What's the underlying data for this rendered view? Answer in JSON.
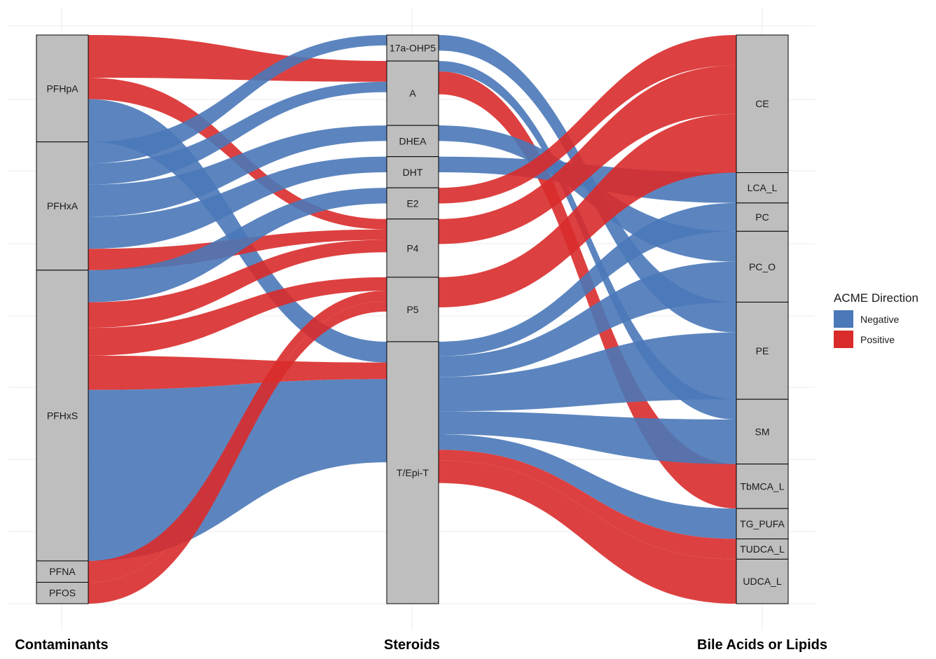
{
  "chart_data": {
    "type": "alluvial",
    "axes": [
      "Contaminants",
      "Steroids",
      "Bile Acids or Lipids"
    ],
    "strata": {
      "Contaminants": [
        "PFHpA",
        "PFHxA",
        "PFHxS",
        "PFNA",
        "PFOS"
      ],
      "Steroids": [
        "17a-OHP5",
        "A",
        "DHEA",
        "DHT",
        "E2",
        "P4",
        "P5",
        "T/Epi-T"
      ],
      "Bile Acids or Lipids": [
        "CE",
        "LCA_L",
        "PC",
        "PC_O",
        "PE",
        "SM",
        "TbMCA_L",
        "TG_PUFA",
        "TUDCA_L",
        "UDCA_L"
      ]
    },
    "flows_stage1": [
      {
        "from": "PFHpA",
        "to": "A",
        "direction": "Positive",
        "value": 2.0
      },
      {
        "from": "PFHpA",
        "to": "P4",
        "direction": "Positive",
        "value": 1.0
      },
      {
        "from": "PFHpA",
        "to": "T/Epi-T",
        "direction": "Negative",
        "value": 2.0
      },
      {
        "from": "PFHxA",
        "to": "17a-OHP5",
        "direction": "Negative",
        "value": 1.0
      },
      {
        "from": "PFHxA",
        "to": "DHEA",
        "direction": "Negative",
        "value": 1.5
      },
      {
        "from": "PFHxA",
        "to": "P4",
        "direction": "Positive",
        "value": 1.0
      },
      {
        "from": "PFHxA",
        "to": "A",
        "direction": "Negative",
        "value": 1.0
      },
      {
        "from": "PFHxA",
        "to": "DHT",
        "direction": "Negative",
        "value": 1.5
      },
      {
        "from": "PFHxS",
        "to": "P4",
        "direction": "Positive",
        "value": 1.2
      },
      {
        "from": "PFHxS",
        "to": "T/Epi-T",
        "direction": "Positive",
        "value": 1.6
      },
      {
        "from": "PFHxS",
        "to": "E2",
        "direction": "Negative",
        "value": 1.5
      },
      {
        "from": "PFHxS",
        "to": "P5",
        "direction": "Positive",
        "value": 1.3
      },
      {
        "from": "PFHxS",
        "to": "T/Epi-T",
        "direction": "Negative",
        "value": 8.0
      },
      {
        "from": "PFNA",
        "to": "P5",
        "direction": "Positive",
        "value": 1.0
      },
      {
        "from": "PFOS",
        "to": "P5",
        "direction": "Positive",
        "value": 1.0
      }
    ],
    "flows_stage2": [
      {
        "from": "17a-OHP5",
        "to": "PE",
        "direction": "Negative",
        "value": 1.5
      },
      {
        "from": "A",
        "to": "TbMCA_L",
        "direction": "Positive",
        "value": 2.2
      },
      {
        "from": "A",
        "to": "SM",
        "direction": "Negative",
        "value": 1.0
      },
      {
        "from": "DHEA",
        "to": "PC_O",
        "direction": "Negative",
        "value": 1.5
      },
      {
        "from": "DHT",
        "to": "LCA_L",
        "direction": "Negative",
        "value": 1.5
      },
      {
        "from": "E2",
        "to": "CE",
        "direction": "Positive",
        "value": 1.5
      },
      {
        "from": "P4",
        "to": "CE",
        "direction": "Positive",
        "value": 2.4
      },
      {
        "from": "P5",
        "to": "CE",
        "direction": "Positive",
        "value": 2.9
      },
      {
        "from": "T/Epi-T",
        "to": "PE",
        "direction": "Negative",
        "value": 3.3
      },
      {
        "from": "T/Epi-T",
        "to": "SM",
        "direction": "Negative",
        "value": 2.2
      },
      {
        "from": "T/Epi-T",
        "to": "PC",
        "direction": "Negative",
        "value": 1.4
      },
      {
        "from": "T/Epi-T",
        "to": "PC_O",
        "direction": "Negative",
        "value": 2.0
      },
      {
        "from": "T/Epi-T",
        "to": "TG_PUFA",
        "direction": "Negative",
        "value": 1.5
      },
      {
        "from": "T/Epi-T",
        "to": "TUDCA_L",
        "direction": "Positive",
        "value": 1.0
      },
      {
        "from": "T/Epi-T",
        "to": "UDCA_L",
        "direction": "Positive",
        "value": 2.2
      }
    ],
    "legend": {
      "title": "ACME Direction",
      "placement": "right",
      "items": [
        {
          "label": "Negative",
          "color": "#4a78b8"
        },
        {
          "label": "Positive",
          "color": "#d92b2b"
        }
      ]
    },
    "colors": {
      "Negative": "#4a78b8",
      "Positive": "#d92b2b",
      "stratum_fill": "#bebebe",
      "gridline": "#ebebeb"
    },
    "grid": true
  }
}
